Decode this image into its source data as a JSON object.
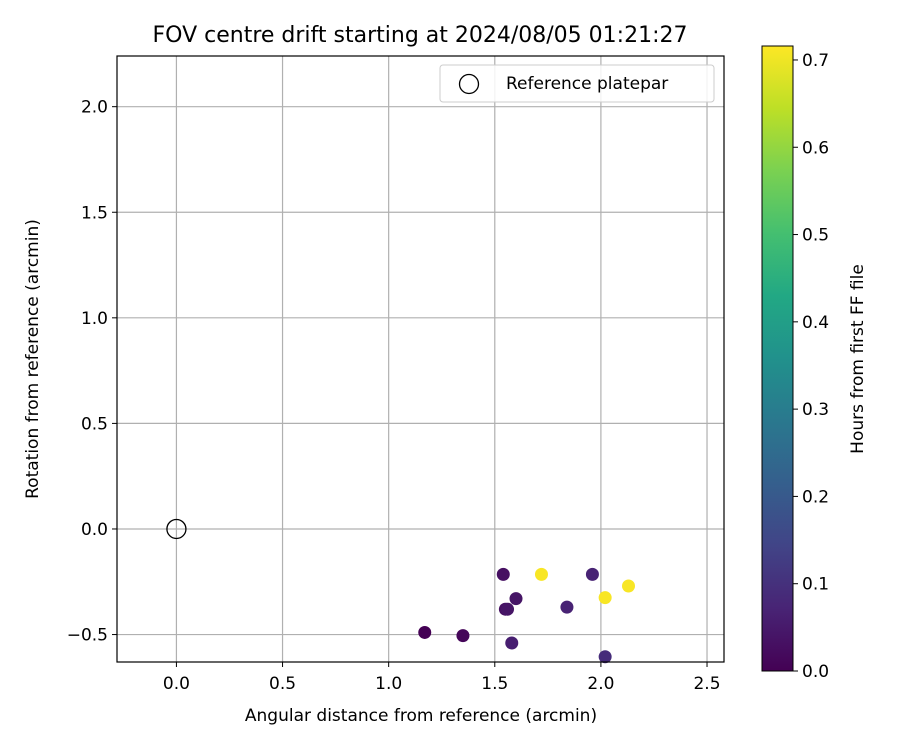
{
  "chart_data": {
    "type": "scatter",
    "title": "FOV centre drift starting at 2024/08/05 01:21:27",
    "xlabel": "Angular distance from reference (arcmin)",
    "ylabel": "Rotation from reference (arcmin)",
    "xlim": [
      -0.28,
      2.58
    ],
    "ylim": [
      -0.63,
      2.24
    ],
    "xticks": [
      0.0,
      0.5,
      1.0,
      1.5,
      2.0,
      2.5
    ],
    "xtick_labels": [
      "0.0",
      "0.5",
      "1.0",
      "1.5",
      "2.0",
      "2.5"
    ],
    "yticks": [
      -0.5,
      0.0,
      0.5,
      1.0,
      1.5,
      2.0
    ],
    "ytick_labels": [
      "−0.5",
      "0.0",
      "0.5",
      "1.0",
      "1.5",
      "2.0"
    ],
    "grid": true,
    "legend": {
      "placement": "top-right",
      "entries": [
        "Reference platepar"
      ]
    },
    "reference_point": {
      "x": 0.0,
      "y": 0.0,
      "label": "Reference platepar"
    },
    "series": [
      {
        "points": [
          {
            "x": 1.17,
            "y": -0.49,
            "c": 0.0
          },
          {
            "x": 1.35,
            "y": -0.505,
            "c": 0.01
          },
          {
            "x": 1.54,
            "y": -0.215,
            "c": 0.03
          },
          {
            "x": 1.55,
            "y": -0.38,
            "c": 0.03
          },
          {
            "x": 1.56,
            "y": -0.38,
            "c": 0.04
          },
          {
            "x": 1.58,
            "y": -0.54,
            "c": 0.06
          },
          {
            "x": 1.6,
            "y": -0.33,
            "c": 0.04
          },
          {
            "x": 1.72,
            "y": -0.215,
            "c": 0.71
          },
          {
            "x": 1.84,
            "y": -0.37,
            "c": 0.07
          },
          {
            "x": 1.96,
            "y": -0.215,
            "c": 0.07
          },
          {
            "x": 2.02,
            "y": -0.605,
            "c": 0.09
          },
          {
            "x": 2.02,
            "y": -0.325,
            "c": 0.71
          },
          {
            "x": 2.13,
            "y": -0.27,
            "c": 0.71
          }
        ]
      }
    ],
    "colorbar": {
      "label": "Hours from first FF file",
      "colormap": "viridis",
      "range": [
        0.0,
        0.716
      ],
      "ticks": [
        0.0,
        0.1,
        0.2,
        0.3,
        0.4,
        0.5,
        0.6,
        0.7
      ],
      "tick_labels": [
        "0.0",
        "0.1",
        "0.2",
        "0.3",
        "0.4",
        "0.5",
        "0.6",
        "0.7"
      ]
    }
  }
}
